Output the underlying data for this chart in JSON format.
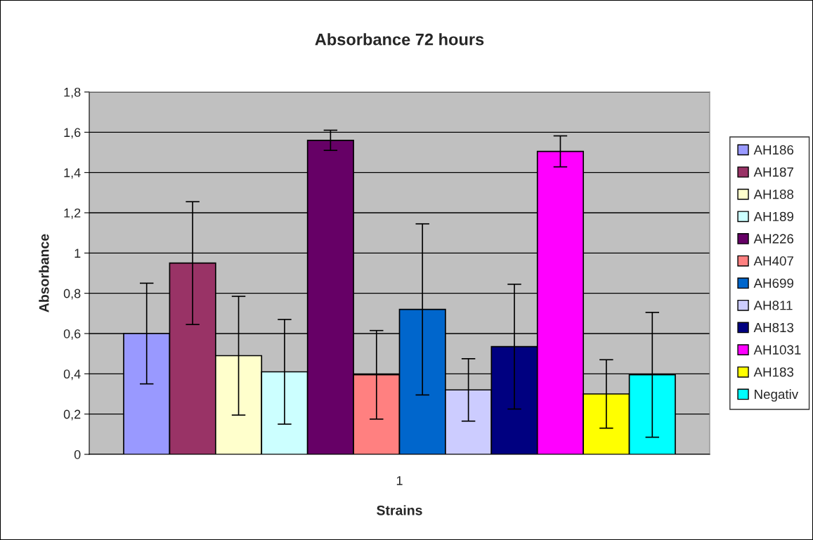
{
  "chart_data": {
    "type": "bar",
    "title": "Absorbance 72 hours",
    "xlabel": "Strains",
    "ylabel": "Absorbance",
    "categories": [
      "1"
    ],
    "series": [
      {
        "name": "AH186",
        "color": "#9999ff",
        "values": [
          0.6
        ],
        "errors": [
          0.25
        ]
      },
      {
        "name": "AH187",
        "color": "#993366",
        "values": [
          0.95
        ],
        "errors": [
          0.305
        ]
      },
      {
        "name": "AH188",
        "color": "#ffffcc",
        "values": [
          0.49
        ],
        "errors": [
          0.295
        ]
      },
      {
        "name": "AH189",
        "color": "#ccffff",
        "values": [
          0.41
        ],
        "errors": [
          0.26
        ]
      },
      {
        "name": "AH226",
        "color": "#660066",
        "values": [
          1.56
        ],
        "errors": [
          0.05
        ]
      },
      {
        "name": "AH407",
        "color": "#ff8080",
        "values": [
          0.395
        ],
        "errors": [
          0.22
        ]
      },
      {
        "name": "AH699",
        "color": "#0066cc",
        "values": [
          0.72
        ],
        "errors": [
          0.425
        ]
      },
      {
        "name": "AH811",
        "color": "#ccccff",
        "values": [
          0.32
        ],
        "errors": [
          0.155
        ]
      },
      {
        "name": "AH813",
        "color": "#000080",
        "values": [
          0.535
        ],
        "errors": [
          0.31
        ]
      },
      {
        "name": "AH1031",
        "color": "#ff00ff",
        "values": [
          1.505
        ],
        "errors": [
          0.077
        ]
      },
      {
        "name": "AH183",
        "color": "#ffff00",
        "values": [
          0.3
        ],
        "errors": [
          0.17
        ]
      },
      {
        "name": "Negativ",
        "color": "#00ffff",
        "values": [
          0.395
        ],
        "errors": [
          0.31
        ]
      }
    ],
    "ylim": [
      0,
      1.8
    ],
    "yticks": [
      0,
      {
        "value": 0.2,
        "label": "0,2"
      },
      {
        "value": 0.4,
        "label": "0,4"
      },
      {
        "value": 0.6,
        "label": "0,6"
      },
      {
        "value": 0.8,
        "label": "0,8"
      },
      1,
      {
        "value": 1.2,
        "label": "1,2"
      },
      {
        "value": 1.4,
        "label": "1,4"
      },
      {
        "value": 1.6,
        "label": "1,6"
      },
      {
        "value": 1.8,
        "label": "1,8"
      }
    ],
    "grid": "y",
    "legend": "right"
  }
}
